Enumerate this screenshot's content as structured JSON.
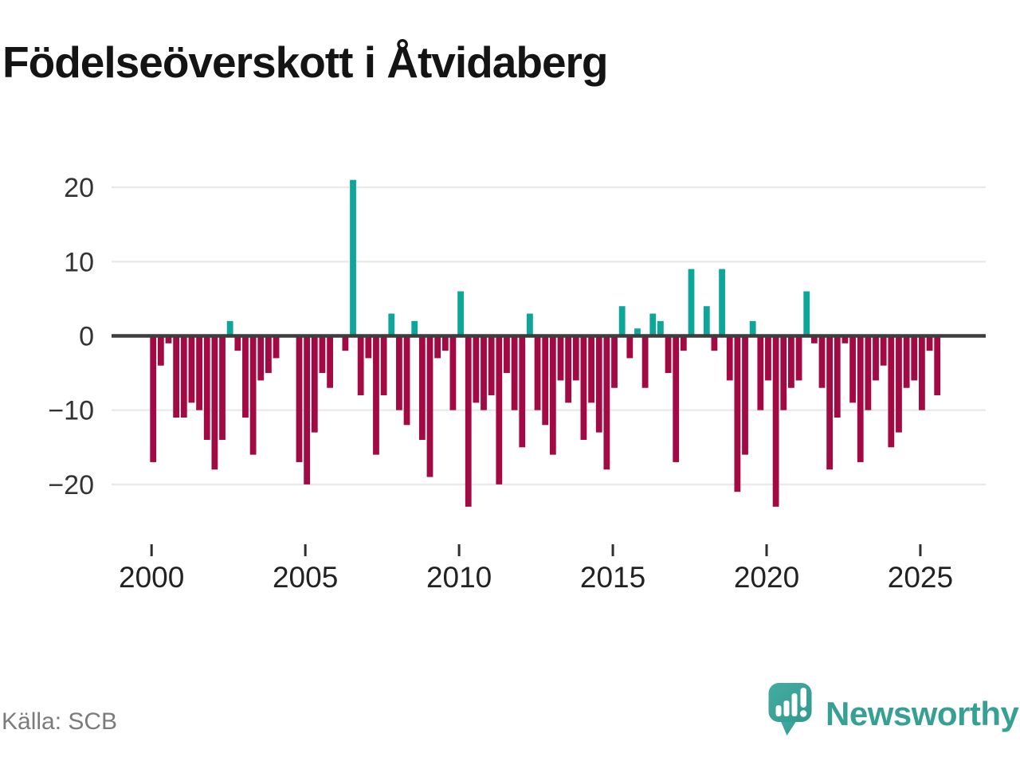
{
  "title": "Födelseöverskott i Åtvidaberg",
  "source": "Källa: SCB",
  "logo": {
    "text": "Newsworthy",
    "icon": "newsworthy-speech-bubble-chart-icon"
  },
  "colors": {
    "positive": "#0da69b",
    "negative": "#a30a44",
    "grid": "#e9e9e9",
    "zero_line": "#3d3d3d",
    "axis_text": "#333333",
    "tick_text": "#222222",
    "source_text": "#7b7b7b",
    "logo_teal": "#37a094",
    "background": "#ffffff"
  },
  "chart_data": {
    "type": "bar",
    "title": "Födelseöverskott i Åtvidaberg",
    "x_unit": "quarter",
    "start": "2000-Q1",
    "end": "2025-Q3",
    "x_tick_labels": [
      "2000",
      "2005",
      "2010",
      "2015",
      "2020",
      "2025"
    ],
    "y_ticks": [
      20,
      10,
      0,
      -10,
      -20
    ],
    "ylim": [
      -25,
      23
    ],
    "grid": "horizontal",
    "legend": "none",
    "positive_color": "#0da69b",
    "negative_color": "#a30a44",
    "values": [
      -17,
      -4,
      -1,
      -11,
      -11,
      -9,
      -10,
      -14,
      -18,
      -14,
      2,
      -2,
      -11,
      -16,
      -6,
      -5,
      -3,
      0,
      0,
      -17,
      -20,
      -13,
      -5,
      -7,
      0,
      -2,
      21,
      -8,
      -3,
      -16,
      -8,
      3,
      -10,
      -12,
      2,
      -14,
      -19,
      -3,
      -2,
      -10,
      6,
      -23,
      -9,
      -10,
      -8,
      -20,
      -5,
      -10,
      -15,
      3,
      -10,
      -12,
      -16,
      -6,
      -9,
      -6,
      -14,
      -9,
      -13,
      -18,
      -7,
      4,
      -3,
      1,
      -7,
      3,
      2,
      -5,
      -17,
      -2,
      9,
      0,
      4,
      -2,
      9,
      -6,
      -21,
      -16,
      2,
      -10,
      -6,
      -23,
      -10,
      -7,
      -6,
      6,
      -1,
      -7,
      -18,
      -11,
      -1,
      -9,
      -17,
      -10,
      -6,
      -4,
      -15,
      -13,
      -7,
      -6,
      -10,
      -2,
      -8
    ]
  }
}
